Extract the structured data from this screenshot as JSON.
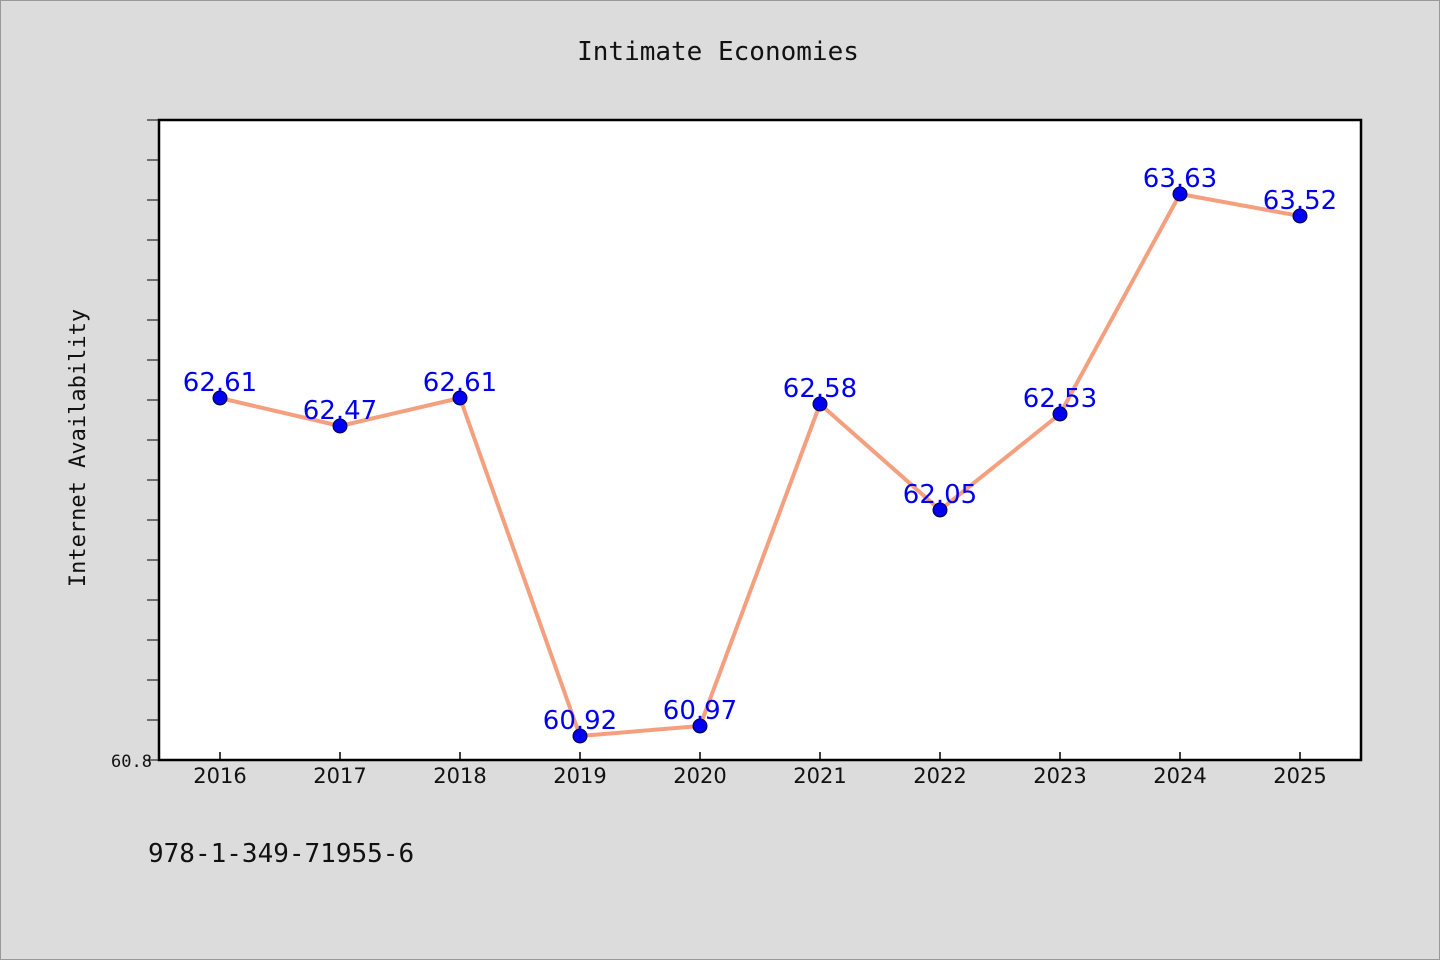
{
  "chart_data": {
    "type": "line",
    "title": "Intimate Economies",
    "xlabel": "",
    "ylabel": "Internet Availability",
    "categories": [
      "2016",
      "2017",
      "2018",
      "2019",
      "2020",
      "2021",
      "2022",
      "2023",
      "2024",
      "2025"
    ],
    "series": [
      {
        "values": [
          62.61,
          62.47,
          62.61,
          60.92,
          60.97,
          62.58,
          62.05,
          62.53,
          63.63,
          63.52
        ],
        "data_labels": [
          "62.61",
          "62.47",
          "62.61",
          "60.92",
          "60.97",
          "62.58",
          "62.05",
          "62.53",
          "63.63",
          "63.52"
        ]
      }
    ],
    "ylim": [
      60.8,
      64.0
    ],
    "y_tick_labels": [
      "60.8"
    ],
    "grid": false,
    "legend": "none",
    "colors": {
      "line": "#f4a07f",
      "marker": "#0000ee",
      "data_label": "#0000ee",
      "background": "#dcdcdc",
      "plot_background": "#ffffff"
    }
  },
  "footer": {
    "code": "978-1-349-71955-6"
  }
}
